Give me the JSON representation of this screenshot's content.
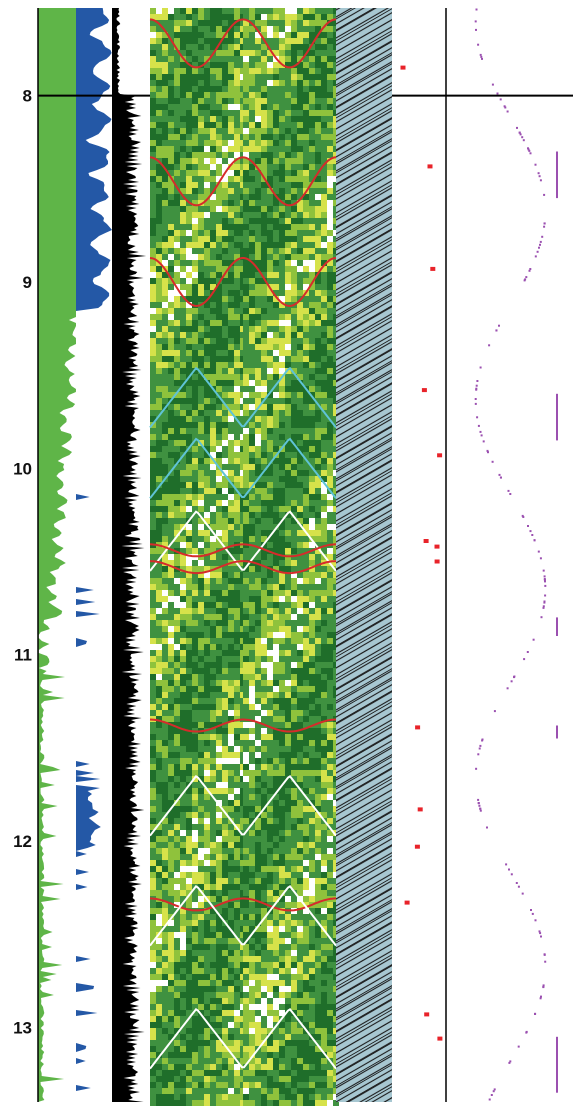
{
  "chart_data": {
    "type": "area",
    "title": "",
    "xlabel": "",
    "ylabel": "",
    "ylim": [
      7.53,
      13.4
    ],
    "y_inverted": true,
    "yticks": [
      8,
      9,
      10,
      11,
      12,
      13
    ],
    "ytick_labels": [
      "8",
      "9",
      "10",
      "11",
      "12",
      "13"
    ],
    "grid": false,
    "legend": "none",
    "tracks": [
      {
        "kind": "curve-fill",
        "fill_color": "#5fb548"
      },
      {
        "kind": "curve-fill",
        "fill_color": "#2458a6"
      },
      {
        "kind": "curve-fill",
        "fill_color": "#000000"
      },
      {
        "kind": "image-log",
        "palette": [
          "#1f6e2a",
          "#3f9140",
          "#8fc23c",
          "#d6e24a",
          "#ffffff"
        ]
      },
      {
        "kind": "image-log",
        "palette": [
          "#1f6e2a",
          "#3f9140",
          "#8fc23c",
          "#d6e24a",
          "#ffffff"
        ]
      },
      {
        "kind": "hatched-column",
        "fill_color": "#a7c7d1",
        "line_color": "#1a1a1a"
      },
      {
        "kind": "scatter",
        "color": "#e8232a"
      },
      {
        "kind": "scatter",
        "color": "#9b50b0"
      }
    ],
    "picked_sinusoids": [
      {
        "depth": 7.72,
        "color": "#d62b2b"
      },
      {
        "depth": 8.46,
        "color": "#d62b2b"
      },
      {
        "depth": 9.0,
        "color": "#d62b2b"
      },
      {
        "depth": 9.62,
        "color": "#5fc3d6"
      },
      {
        "depth": 10.0,
        "color": "#5fc3d6"
      },
      {
        "depth": 10.39,
        "color": "#ffffff"
      },
      {
        "depth": 10.44,
        "color": "#d62b2b"
      },
      {
        "depth": 10.53,
        "color": "#d62b2b"
      },
      {
        "depth": 11.38,
        "color": "#d62b2b"
      },
      {
        "depth": 11.81,
        "color": "#ffffff"
      },
      {
        "depth": 12.34,
        "color": "#d62b2b"
      },
      {
        "depth": 12.4,
        "color": "#ffffff"
      },
      {
        "depth": 13.06,
        "color": "#ffffff"
      }
    ],
    "reference_depth": 8.0
  }
}
